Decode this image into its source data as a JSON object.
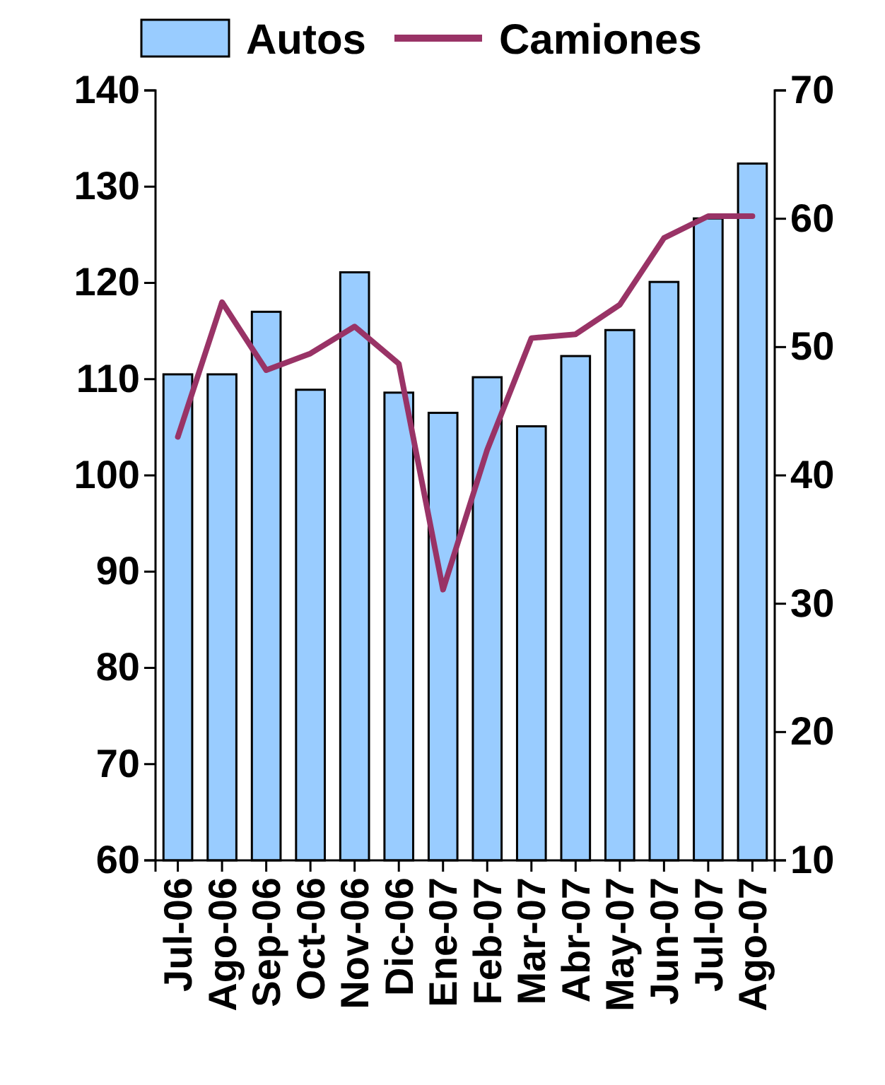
{
  "chart_data": {
    "type": "bar",
    "categories": [
      "Jul-06",
      "Ago-06",
      "Sep-06",
      "Oct-06",
      "Nov-06",
      "Dic-06",
      "Ene-07",
      "Feb-07",
      "Mar-07",
      "Abr-07",
      "May-07",
      "Jun-07",
      "Jul-07",
      "Ago-07"
    ],
    "series": [
      {
        "name": "Autos",
        "color": "#99ccff",
        "values": [
          110.5,
          110.5,
          117,
          108.9,
          121.1,
          108.6,
          106.5,
          110.2,
          105.1,
          112.4,
          115.1,
          120.1,
          126.7,
          132.4
        ]
      },
      {
        "name": "Camiones",
        "type": "line",
        "axis": "y2",
        "color": "#993366",
        "values": [
          43,
          53.5,
          48.2,
          49.5,
          51.6,
          48.7,
          31.1,
          42,
          50.7,
          51,
          53.3,
          58.5,
          60.2,
          60.2
        ]
      }
    ],
    "ylim": [
      60,
      140
    ],
    "yticks": [
      60,
      70,
      80,
      90,
      100,
      110,
      120,
      130,
      140
    ],
    "y2lim": [
      10,
      70
    ],
    "y2ticks": [
      10,
      20,
      30,
      40,
      50,
      60,
      70
    ],
    "grid": false,
    "legend": "top",
    "line_style": "solid",
    "marker": "none"
  }
}
